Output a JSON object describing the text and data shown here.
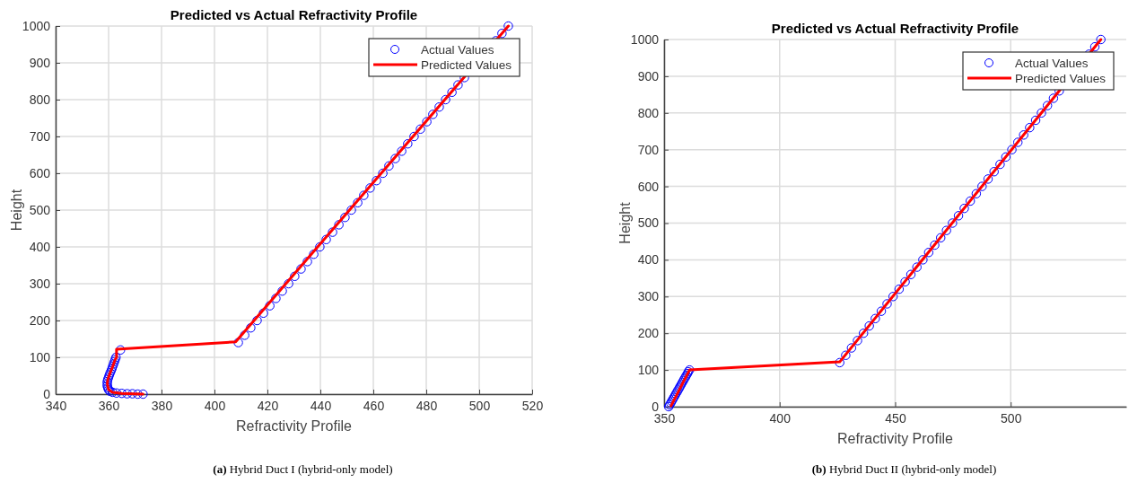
{
  "chart_data": [
    {
      "type": "scatter",
      "title": "Predicted vs Actual Refractivity Profile",
      "xlabel": "Refractivity Profile",
      "ylabel": "Height",
      "xlim": [
        340,
        520
      ],
      "xticks": [
        340,
        360,
        380,
        400,
        420,
        440,
        460,
        480,
        500,
        520
      ],
      "ylim": [
        0,
        1000
      ],
      "yticks": [
        0,
        100,
        200,
        300,
        400,
        500,
        600,
        700,
        800,
        900,
        1000
      ],
      "grid": true,
      "legend": "top right",
      "annotations": [
        "(a) Hybrid Duct I (hybrid-only model)"
      ],
      "series": [
        {
          "name": "Actual Values",
          "type": "scatter",
          "marker": "circle",
          "color": "#0000ff",
          "x": [
            373,
            371,
            369,
            367,
            365,
            363,
            361.5,
            360.5,
            360,
            359.7,
            359.5,
            359.5,
            359.5,
            359.7,
            360,
            360.3,
            360.6,
            361,
            361.3,
            361.6,
            361.9,
            362.2,
            362.5,
            362.8,
            364.5,
            409.0,
            411.4,
            413.7,
            416.1,
            418.5,
            420.9,
            423.2,
            425.6,
            428.0,
            430.3,
            432.7,
            435.1,
            437.5,
            439.8,
            442.2,
            444.6,
            447.0,
            449.3,
            451.7,
            454.1,
            456.4,
            458.8,
            461.2,
            463.6,
            465.9,
            468.3,
            470.7,
            473.0,
            475.4,
            477.8,
            480.2,
            482.5,
            484.9,
            487.3,
            489.7,
            492.0,
            494.4,
            496.8,
            499.1,
            501.5,
            503.9,
            506.3,
            508.6,
            511.0
          ],
          "values": [
            0,
            0,
            1,
            1,
            2,
            3,
            5,
            8,
            12,
            17,
            22,
            28,
            34,
            40,
            46,
            52,
            58,
            64,
            70,
            76,
            82,
            88,
            94,
            100,
            120,
            140,
            160,
            180,
            200,
            220,
            240,
            260,
            280,
            300,
            320,
            340,
            360,
            380,
            400,
            420,
            440,
            460,
            480,
            500,
            520,
            540,
            560,
            580,
            600,
            620,
            640,
            660,
            680,
            700,
            720,
            740,
            760,
            780,
            800,
            820,
            840,
            860,
            null,
            null,
            null,
            null,
            960,
            980,
            1000
          ]
        },
        {
          "name": "Predicted Values",
          "type": "line",
          "line_style": "solid",
          "color": "#ff0000",
          "x": [
            373,
            365,
            361.5,
            360,
            359.5,
            359.7,
            360.6,
            361.6,
            362.5,
            363,
            363,
            408,
            511
          ],
          "values": [
            0,
            2,
            5,
            12,
            28,
            40,
            58,
            76,
            94,
            100,
            122,
            142,
            1000
          ]
        }
      ]
    },
    {
      "type": "scatter",
      "title": "Predicted vs Actual Refractivity Profile",
      "xlabel": "Refractivity Profile",
      "ylabel": "Height",
      "xlim": [
        350,
        550
      ],
      "xticks": [
        350,
        400,
        450,
        500
      ],
      "ylim": [
        0,
        1000
      ],
      "yticks": [
        0,
        100,
        200,
        300,
        400,
        500,
        600,
        700,
        800,
        900,
        1000
      ],
      "grid": true,
      "legend": "top right",
      "annotations": [
        "(b) Hybrid Duct II (hybrid-only model)"
      ],
      "series": [
        {
          "name": "Actual Values",
          "type": "scatter",
          "marker": "circle",
          "color": "#0000ff",
          "x": [
            352.0,
            352.4,
            352.9,
            353.3,
            353.8,
            354.2,
            354.7,
            355.1,
            355.6,
            356.0,
            356.5,
            356.9,
            357.4,
            357.8,
            358.3,
            358.7,
            359.2,
            359.6,
            360.1,
            360.5,
            361.0,
            426.0,
            428.6,
            431.1,
            433.7,
            436.3,
            438.8,
            441.4,
            444.0,
            446.5,
            449.1,
            451.7,
            454.3,
            456.8,
            459.4,
            462.0,
            464.5,
            467.1,
            469.7,
            472.2,
            474.8,
            477.4,
            479.9,
            482.5,
            485.1,
            487.6,
            490.2,
            492.8,
            495.4,
            497.9,
            500.5,
            503.1,
            505.6,
            508.2,
            510.8,
            513.3,
            515.9,
            518.5,
            521.0,
            523.6,
            526.2,
            528.7,
            531.3,
            533.9,
            536.4,
            539.0
          ],
          "values": [
            0,
            5,
            10,
            15,
            20,
            25,
            30,
            35,
            40,
            45,
            50,
            55,
            60,
            65,
            70,
            75,
            80,
            85,
            90,
            95,
            100,
            120,
            140,
            160,
            180,
            200,
            220,
            240,
            260,
            280,
            300,
            320,
            340,
            360,
            380,
            400,
            420,
            440,
            460,
            480,
            500,
            520,
            540,
            560,
            580,
            600,
            620,
            640,
            660,
            680,
            700,
            720,
            740,
            760,
            780,
            800,
            820,
            840,
            860,
            null,
            null,
            null,
            null,
            960,
            980,
            1000
          ]
        },
        {
          "name": "Predicted Values",
          "type": "line",
          "line_style": "solid",
          "color": "#ff0000",
          "x": [
            353,
            361,
            426,
            539
          ],
          "values": [
            2,
            100,
            122,
            1000
          ]
        }
      ]
    }
  ]
}
